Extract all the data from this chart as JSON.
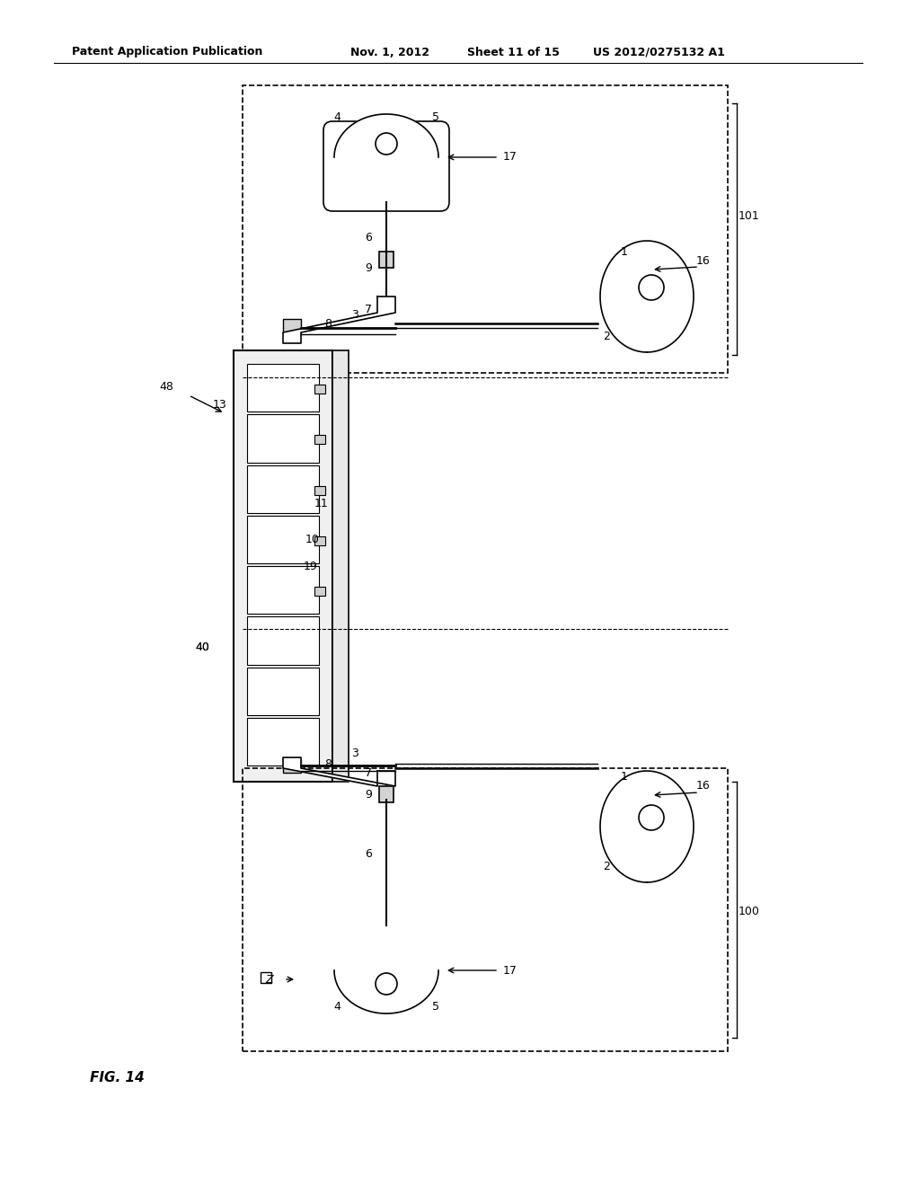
{
  "bg_color": "#ffffff",
  "line_color": "#000000",
  "header_text": "Patent Application Publication",
  "header_date": "Nov. 1, 2012",
  "header_sheet": "Sheet 11 of 15",
  "header_patent": "US 2012/0275132 A1",
  "figure_label": "FIG. 14",
  "title": "FIG. 14"
}
